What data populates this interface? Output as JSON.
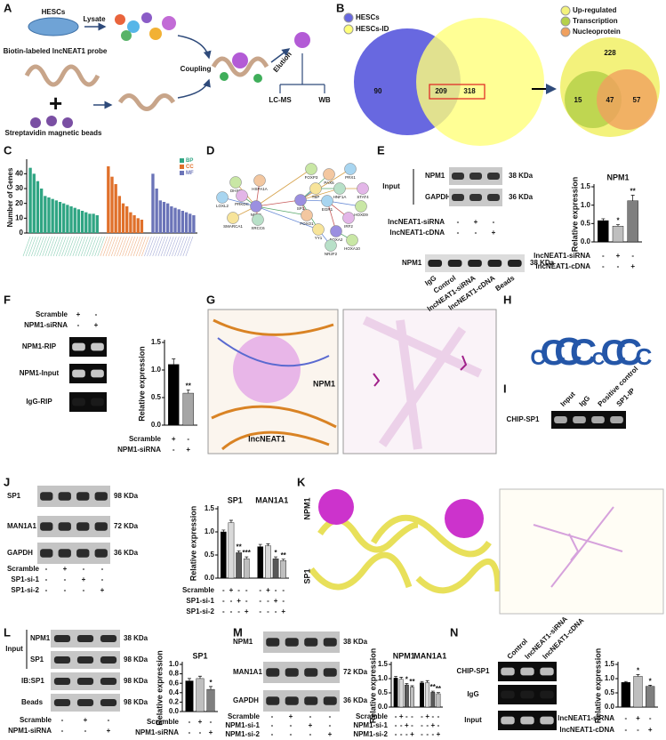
{
  "figure": {
    "A": {
      "letter": "A",
      "hescs": "HESCs",
      "lysate": "Lysate",
      "probe": "Biotin-labeled lncNEAT1 probe",
      "beads": "Streptavidin magnetic beads",
      "coupling": "Coupling",
      "elution": "Elution",
      "lcms": "LC-MS",
      "wb": "WB"
    },
    "B": {
      "letter": "B",
      "legend1": [
        "HESCs",
        "HESCs-ID"
      ],
      "counts1": [
        "90",
        "209",
        "318"
      ],
      "legend2": [
        "Up-regulated",
        "Transcription",
        "Nucleoprotein"
      ],
      "counts2": [
        "228",
        "15",
        "47",
        "57"
      ]
    },
    "C": {
      "letter": "C"
    },
    "D": {
      "letter": "D",
      "nodes": [
        "DHX9",
        "HSPA1A",
        "LOXL2",
        "PRKDC",
        "NPM1",
        "SMARCA1",
        "XRCC6",
        "FOXP3",
        "PAX5",
        "PRX1",
        "STAT4",
        "SP1",
        "TBP",
        "HNF1A",
        "HOXD9",
        "FOXO1",
        "EGR1",
        "IRF2",
        "FOXA2",
        "YY1",
        "NR2F2",
        "HOXA10"
      ]
    },
    "E": {
      "letter": "E",
      "input": "Input",
      "rows": [
        "NPM1",
        "GAPDH"
      ],
      "sizes": [
        "38 KDa",
        "36 KDa"
      ],
      "conditions": [
        {
          "label": "lncNEAT1-siRNA",
          "signs": [
            "-",
            "+",
            "-"
          ]
        },
        {
          "label": "lncNEAT1-cDNA",
          "signs": [
            "-",
            "-",
            "+"
          ]
        }
      ],
      "ip_row": "NPM1",
      "ip_size": "38 KDa",
      "lanes": [
        "IgG",
        "Control",
        "lncNEAT1-siRNA",
        "lncNEAT1-cDNA",
        "Beads"
      ]
    },
    "F": {
      "letter": "F",
      "conditions": [
        {
          "label": "Scramble",
          "signs": [
            "+",
            "-"
          ]
        },
        {
          "label": "NPM1-siRNA",
          "signs": [
            "-",
            "+"
          ]
        }
      ],
      "rows": [
        "NPM1-RIP",
        "NPM1-Input",
        "IgG-RIP"
      ]
    },
    "G": {
      "letter": "G",
      "labels": [
        "NPM1",
        "lncNEAT1"
      ]
    },
    "H": {
      "letter": "H",
      "motif": [
        "C",
        "C",
        "C",
        "C",
        "C",
        "C",
        "C",
        "C"
      ]
    },
    "I": {
      "letter": "I",
      "row": "CHIP-SP1",
      "lanes": [
        "Input",
        "IgG",
        "Positive control",
        "SP1-IP"
      ]
    },
    "J": {
      "letter": "J",
      "rows": [
        "SP1",
        "MAN1A1",
        "GAPDH"
      ],
      "sizes": [
        "98 KDa",
        "72 KDa",
        "36 KDa"
      ],
      "conditions": [
        {
          "label": "Scramble",
          "signs": [
            "-",
            "+",
            "-",
            "-"
          ]
        },
        {
          "label": "SP1-si-1",
          "signs": [
            "-",
            "-",
            "+",
            "-"
          ]
        },
        {
          "label": "SP1-si-2",
          "signs": [
            "-",
            "-",
            "-",
            "+"
          ]
        }
      ]
    },
    "K": {
      "letter": "K",
      "labels": [
        "NPM1",
        "SP1"
      ]
    },
    "L": {
      "letter": "L",
      "input": "Input",
      "rows": [
        "NPM1",
        "SP1",
        "IB:SP1",
        "Beads"
      ],
      "sizes": [
        "38 KDa",
        "98 KDa",
        "98 KDa",
        "98 KDa"
      ],
      "conditions": [
        {
          "label": "Scramble",
          "signs": [
            "-",
            "+",
            "-"
          ]
        },
        {
          "label": "NPM1-siRNA",
          "signs": [
            "-",
            "-",
            "+"
          ]
        }
      ]
    },
    "M": {
      "letter": "M",
      "rows": [
        "NPM1",
        "MAN1A1",
        "GAPDH"
      ],
      "sizes": [
        "38 KDa",
        "72 KDa",
        "36 KDa"
      ],
      "conditions": [
        {
          "label": "Scramble",
          "signs": [
            "-",
            "+",
            "-",
            "-"
          ]
        },
        {
          "label": "NPM1-si-1",
          "signs": [
            "-",
            "-",
            "+",
            "-"
          ]
        },
        {
          "label": "NPM1-si-2",
          "signs": [
            "-",
            "-",
            "-",
            "+"
          ]
        }
      ]
    },
    "N": {
      "letter": "N",
      "lanes": [
        "Control",
        "lncNEAT1-siRNA",
        "lncNEAT1-cDNA"
      ],
      "rows": [
        "CHIP-SP1",
        "IgG",
        "Input"
      ]
    }
  },
  "chart_data": [
    {
      "type": "column",
      "ylabel": "Number of Genes",
      "ylim": [
        0,
        48
      ],
      "yticks": [
        0,
        10,
        20,
        30,
        40
      ],
      "series": [
        {
          "name": "BP",
          "color": "#2fa583",
          "values": [
            44,
            40,
            35,
            30,
            25,
            24,
            23,
            22,
            21,
            20,
            19,
            18,
            17,
            16,
            15,
            14,
            13,
            13,
            12
          ]
        },
        {
          "name": "CC",
          "color": "#e0702a",
          "values": [
            45,
            38,
            33,
            25,
            20,
            18,
            14,
            12,
            10,
            9
          ]
        },
        {
          "name": "MF",
          "color": "#6b74b8",
          "values": [
            40,
            30,
            22,
            21,
            20,
            18,
            17,
            16,
            15,
            14,
            13,
            12
          ]
        }
      ]
    },
    {
      "type": "bar",
      "ylabel": "Relative expression",
      "ylim": [
        0,
        1.5
      ],
      "yticks": [
        {
          "value": 0,
          "label": "0.0"
        },
        {
          "value": 0.5,
          "label": "0.5"
        },
        {
          "value": 1,
          "label": "1.0"
        },
        {
          "value": 1.5,
          "label": "1.5"
        }
      ],
      "series": [
        {
          "name": "NPM1",
          "values": [
            0.58,
            0.43,
            1.12
          ],
          "errors": [
            0.05,
            0.04,
            0.15
          ],
          "colors": [
            "#000000",
            "#bfbfbf",
            "#7f7f7f"
          ],
          "sig": [
            null,
            "*",
            "**"
          ]
        }
      ],
      "conditions": [
        {
          "label": "lncNEAT1-siRNA",
          "signs": [
            "-",
            "+",
            "-"
          ]
        },
        {
          "label": "lncNEAT1-cDNA",
          "signs": [
            "-",
            "-",
            "+"
          ]
        }
      ]
    },
    {
      "type": "bar",
      "ylabel": "Relative expression",
      "ylim": [
        0,
        1.5
      ],
      "yticks": [
        {
          "value": 0,
          "label": "0.0"
        },
        {
          "value": 0.5,
          "label": "0.5"
        },
        {
          "value": 1,
          "label": "1.0"
        },
        {
          "value": 1.5,
          "label": "1.5"
        }
      ],
      "series": [
        {
          "values": [
            1.1,
            0.58
          ],
          "errors": [
            0.1,
            0.06
          ],
          "colors": [
            "#000000",
            "#a6a6a6"
          ],
          "sig": [
            null,
            "**"
          ]
        }
      ],
      "conditions": [
        {
          "label": "Scramble",
          "signs": [
            "+",
            "-"
          ]
        },
        {
          "label": "NPM1-siRNA",
          "signs": [
            "-",
            "+"
          ]
        }
      ]
    },
    {
      "type": "bar",
      "ylabel": "Relative expression",
      "ylim": [
        0,
        1.5
      ],
      "yticks": [
        {
          "value": 0,
          "label": "0.0"
        },
        {
          "value": 0.5,
          "label": "0.5"
        },
        {
          "value": 1,
          "label": "1.0"
        },
        {
          "value": 1.5,
          "label": "1.5"
        }
      ],
      "series": [
        {
          "name": "SP1",
          "values": [
            1.0,
            1.2,
            0.55,
            0.42
          ],
          "errors": [
            0.04,
            0.05,
            0.04,
            0.04
          ],
          "colors": [
            "#000000",
            "#d9d9d9",
            "#595959",
            "#bfbfbf"
          ],
          "sig": [
            null,
            null,
            "**",
            "***"
          ]
        },
        {
          "name": "MAN1A1",
          "values": [
            0.68,
            0.7,
            0.42,
            0.38
          ],
          "errors": [
            0.05,
            0.04,
            0.04,
            0.03
          ],
          "colors": [
            "#000000",
            "#d9d9d9",
            "#595959",
            "#bfbfbf"
          ],
          "sig": [
            null,
            null,
            "*",
            "**"
          ]
        }
      ],
      "conditions": [
        {
          "label": "Scramble",
          "signs": [
            "-",
            "+",
            "-",
            "-",
            "-",
            "+",
            "-",
            "-"
          ]
        },
        {
          "label": "SP1-si-1",
          "signs": [
            "-",
            "-",
            "+",
            "-",
            "-",
            "-",
            "+",
            "-"
          ]
        },
        {
          "label": "SP1-si-2",
          "signs": [
            "-",
            "-",
            "-",
            "+",
            "-",
            "-",
            "-",
            "+"
          ]
        }
      ]
    },
    {
      "type": "bar",
      "ylabel": "Relative expression",
      "ylim": [
        0,
        1.0
      ],
      "yticks": [
        {
          "value": 0,
          "label": "0.0"
        },
        {
          "value": 0.2,
          "label": "0.2"
        },
        {
          "value": 0.4,
          "label": "0.4"
        },
        {
          "value": 0.6,
          "label": "0.6"
        },
        {
          "value": 0.8,
          "label": "0.8"
        },
        {
          "value": 1,
          "label": "1.0"
        }
      ],
      "series": [
        {
          "name": "SP1",
          "values": [
            0.65,
            0.7,
            0.47
          ],
          "errors": [
            0.05,
            0.05,
            0.06
          ],
          "colors": [
            "#000000",
            "#bfbfbf",
            "#7f7f7f"
          ],
          "sig": [
            null,
            null,
            "*"
          ]
        }
      ],
      "conditions": [
        {
          "label": "Scramble",
          "signs": [
            "-",
            "+",
            "-"
          ]
        },
        {
          "label": "NPM1-siRNA",
          "signs": [
            "-",
            "-",
            "+"
          ]
        }
      ]
    },
    {
      "type": "bar",
      "ylabel": "Relative expression",
      "ylim": [
        0,
        1.5
      ],
      "yticks": [
        {
          "value": 0,
          "label": "0.0"
        },
        {
          "value": 0.5,
          "label": "0.5"
        },
        {
          "value": 1,
          "label": "1.0"
        },
        {
          "value": 1.5,
          "label": "1.5"
        }
      ],
      "series": [
        {
          "name": "NPM1",
          "values": [
            1.02,
            0.98,
            0.78,
            0.7
          ],
          "errors": [
            0.06,
            0.07,
            0.05,
            0.05
          ],
          "colors": [
            "#000000",
            "#d9d9d9",
            "#595959",
            "#bfbfbf"
          ],
          "sig": [
            null,
            null,
            "*",
            "**"
          ]
        },
        {
          "name": "MAN1A1",
          "values": [
            0.85,
            0.86,
            0.52,
            0.47
          ],
          "errors": [
            0.05,
            0.07,
            0.04,
            0.04
          ],
          "colors": [
            "#000000",
            "#d9d9d9",
            "#595959",
            "#bfbfbf"
          ],
          "sig": [
            null,
            null,
            "**",
            "**"
          ]
        }
      ],
      "conditions": [
        {
          "label": "Scramble",
          "signs": [
            "-",
            "+",
            "-",
            "-",
            "-",
            "+",
            "-",
            "-"
          ]
        },
        {
          "label": "NPM1-si-1",
          "signs": [
            "-",
            "-",
            "+",
            "-",
            "-",
            "-",
            "+",
            "-"
          ]
        },
        {
          "label": "NPM1-si-2",
          "signs": [
            "-",
            "-",
            "-",
            "+",
            "-",
            "-",
            "-",
            "+"
          ]
        }
      ]
    },
    {
      "type": "bar",
      "ylabel": "Relative expression",
      "ylim": [
        0,
        1.5
      ],
      "yticks": [
        {
          "value": 0,
          "label": "0.0"
        },
        {
          "value": 0.5,
          "label": "0.5"
        },
        {
          "value": 1,
          "label": "1.0"
        },
        {
          "value": 1.5,
          "label": "1.5"
        }
      ],
      "series": [
        {
          "values": [
            0.87,
            1.08,
            0.73
          ],
          "errors": [
            0.03,
            0.06,
            0.04
          ],
          "colors": [
            "#000000",
            "#bfbfbf",
            "#7f7f7f"
          ],
          "sig": [
            null,
            "*",
            "*"
          ]
        }
      ],
      "conditions": [
        {
          "label": "lncNEAT1-siRNA",
          "signs": [
            "-",
            "+",
            "-"
          ]
        },
        {
          "label": "lncNEAT1-cDNA",
          "signs": [
            "-",
            "-",
            "+"
          ]
        }
      ]
    }
  ]
}
